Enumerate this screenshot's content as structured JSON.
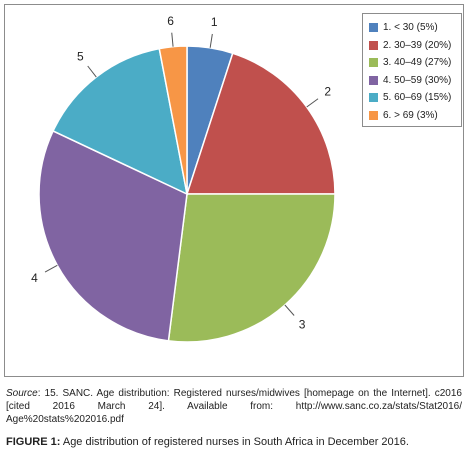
{
  "chart_data": {
    "type": "pie",
    "title": "",
    "slice_labels": [
      "1",
      "2",
      "3",
      "4",
      "5",
      "6"
    ],
    "legend": [
      "1. < 30 (5%)",
      "2. 30–39 (20%)",
      "3. 40–49 (27%)",
      "4. 50–59 (30%)",
      "5. 60–69 (15%)",
      "6. > 69 (3%)"
    ],
    "values": [
      5,
      20,
      27,
      30,
      15,
      3
    ],
    "colors": [
      "#4f81bd",
      "#c0504d",
      "#9bbb59",
      "#8064a2",
      "#4bacc6",
      "#f79646"
    ],
    "legend_position": "top-right"
  },
  "source": {
    "label": "Source",
    "text": ": 15. SANC. Age distribution: Registered nurses/midwives [homepage on the Internet]. c2016 [cited 2016 March 24]. Available from: http://www.sanc.co.za/stats/Stat2016/ Age%20stats%202016.pdf"
  },
  "caption": {
    "label": "FIGURE 1:",
    "text": " Age distribution of registered nurses in South Africa in December 2016."
  }
}
